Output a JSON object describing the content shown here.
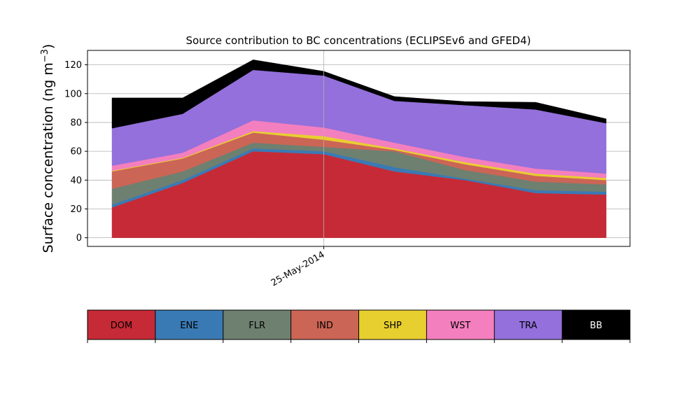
{
  "chart_data": {
    "type": "area",
    "stacked": true,
    "title": "Source contribution to BC concentrations (ECLIPSEv6 and GFED4)",
    "ylabel": "Surface concentration (ng m",
    "ylabel_superscript": "−3",
    "ylabel_close": ")",
    "ylim": [
      -6,
      130
    ],
    "yticks": [
      0,
      20,
      40,
      60,
      80,
      100,
      120
    ],
    "grid": true,
    "x_tick_labels": [
      "25-May-2014"
    ],
    "series": [
      {
        "name": "DOM",
        "color": "#c62a36",
        "values": [
          21,
          38,
          60,
          58,
          46,
          40,
          31,
          30
        ]
      },
      {
        "name": "ENE",
        "color": "#3a7ab4",
        "values": [
          2,
          2,
          2,
          2,
          3,
          1,
          2,
          2
        ]
      },
      {
        "name": "FLR",
        "color": "#6e8070",
        "values": [
          11,
          6,
          4,
          3,
          11,
          6,
          6,
          5
        ]
      },
      {
        "name": "IND",
        "color": "#cb6556",
        "values": [
          12,
          9,
          7,
          5,
          1,
          4,
          4,
          3
        ]
      },
      {
        "name": "SHP",
        "color": "#e8cf30",
        "values": [
          0.5,
          0.5,
          1,
          2.5,
          1,
          1.5,
          1.5,
          1.5
        ]
      },
      {
        "name": "WST",
        "color": "#f47fbe",
        "values": [
          3.5,
          3.5,
          7.5,
          6,
          4,
          3.5,
          3.5,
          3
        ]
      },
      {
        "name": "TRA",
        "color": "#9370db",
        "values": [
          26,
          27,
          35,
          36,
          29,
          36,
          41,
          35
        ]
      },
      {
        "name": "BB",
        "color": "#000000",
        "values": [
          21,
          11,
          7,
          3,
          3,
          2.5,
          5,
          3
        ]
      }
    ],
    "legend_text_colors": [
      "#000000",
      "#000000",
      "#000000",
      "#000000",
      "#000000",
      "#000000",
      "#000000",
      "#ffffff"
    ]
  }
}
